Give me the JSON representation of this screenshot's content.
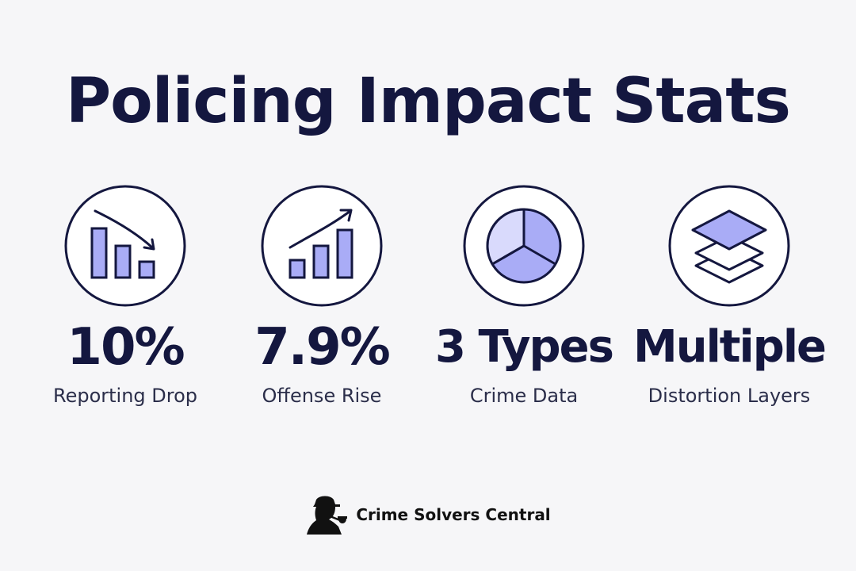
{
  "title": "Policing Impact Stats",
  "colors": {
    "navy": "#14173f",
    "accent": "#a9acf6",
    "accent_light": "#d9dafc"
  },
  "stats": [
    {
      "icon": "bar-chart-down-icon",
      "value": "10%",
      "label": "Reporting Drop"
    },
    {
      "icon": "bar-chart-up-icon",
      "value": "7.9%",
      "label": "Offense Rise"
    },
    {
      "icon": "pie-chart-icon",
      "value": "3 Types",
      "label": "Crime Data"
    },
    {
      "icon": "layers-icon",
      "value": "Multiple",
      "label": "Distortion Layers"
    }
  ],
  "footer": {
    "logo_icon": "detective-pipe-icon",
    "brand": "Crime Solvers Central"
  }
}
